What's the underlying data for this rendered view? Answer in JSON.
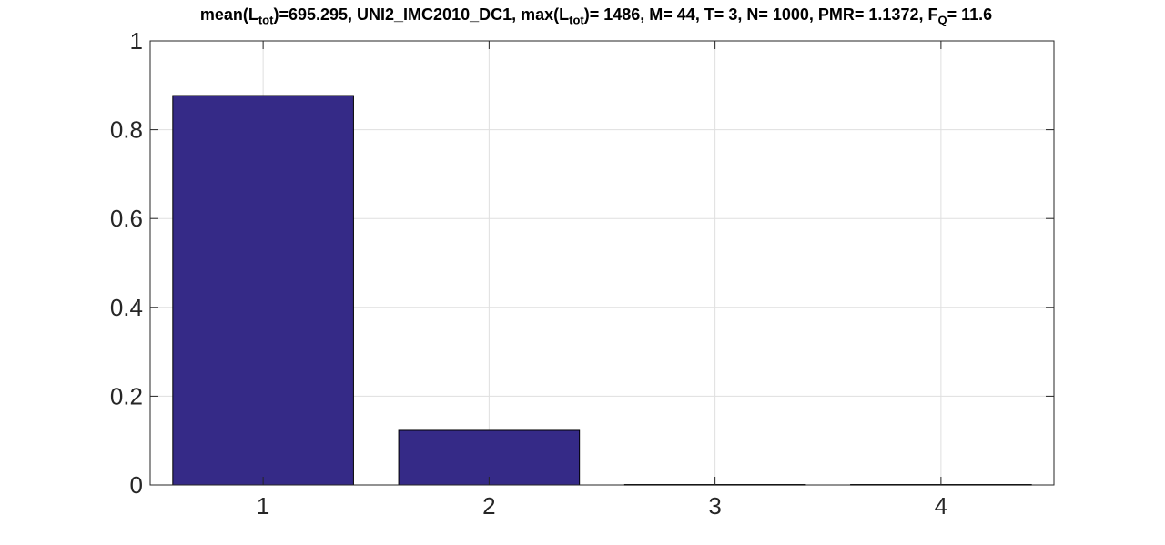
{
  "chart_data": {
    "type": "bar",
    "title": {
      "parts": [
        {
          "text": "mean(L",
          "sub": false
        },
        {
          "text": "tot",
          "sub": true
        },
        {
          "text": ")=695.295, UNI2_IMC2010_DC1, max(L",
          "sub": false
        },
        {
          "text": "tot",
          "sub": true
        },
        {
          "text": ")= 1486, M= 44, T= 3, N= 1000, PMR= 1.1372, F",
          "sub": false
        },
        {
          "text": "Q",
          "sub": true
        },
        {
          "text": "= 11.6",
          "sub": false
        }
      ]
    },
    "categories": [
      "1",
      "2",
      "3",
      "4"
    ],
    "values": [
      0.877,
      0.123,
      0.001,
      0.001
    ],
    "ylim": [
      0,
      1
    ],
    "yticks": [
      0,
      0.2,
      0.4,
      0.6,
      0.8,
      1
    ],
    "ytick_labels": [
      "0",
      "0.2",
      "0.4",
      "0.6",
      "0.8",
      "1"
    ],
    "xlim": [
      0.5,
      4.5
    ],
    "grid": true,
    "xlabel": "",
    "ylabel": "",
    "colors": {
      "bar": "#352a87",
      "edge": "#000000",
      "grid": "#dfdfdf",
      "axis": "#262626"
    }
  }
}
